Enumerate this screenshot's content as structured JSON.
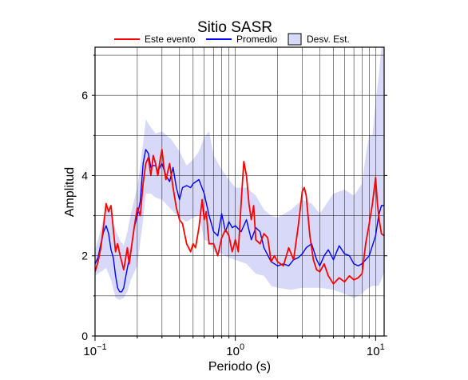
{
  "chart_data": {
    "type": "line",
    "title": "Sitio SASR",
    "xlabel": "Periodo (s)",
    "ylabel": "Amplitud",
    "x_scale": "log",
    "xlim": [
      0.1,
      11.5
    ],
    "ylim": [
      0,
      7.2
    ],
    "x_ticks": [
      {
        "value": 0.1,
        "base": "10",
        "exp": "−1"
      },
      {
        "value": 1,
        "base": "10",
        "exp": "0"
      },
      {
        "value": 10,
        "base": "10",
        "exp": "1"
      }
    ],
    "y_ticks": [
      "0",
      "2",
      "4",
      "6"
    ],
    "grid": true,
    "legend": {
      "position": "top",
      "entries": [
        {
          "label": "Este evento",
          "color": "#ff0000",
          "kind": "line"
        },
        {
          "label": "Promedio",
          "color": "#0000ff",
          "kind": "line"
        },
        {
          "label": "Desv. Est.",
          "color": "#d8d8f8",
          "kind": "area"
        }
      ]
    },
    "series": [
      {
        "name": "Este evento",
        "color": "#ff0000",
        "x": [
          0.1,
          0.105,
          0.11,
          0.115,
          0.12,
          0.125,
          0.13,
          0.135,
          0.14,
          0.145,
          0.15,
          0.16,
          0.17,
          0.175,
          0.18,
          0.19,
          0.2,
          0.21,
          0.22,
          0.23,
          0.24,
          0.25,
          0.26,
          0.27,
          0.28,
          0.29,
          0.3,
          0.31,
          0.32,
          0.33,
          0.34,
          0.36,
          0.38,
          0.4,
          0.42,
          0.45,
          0.48,
          0.5,
          0.52,
          0.55,
          0.58,
          0.6,
          0.62,
          0.65,
          0.7,
          0.75,
          0.8,
          0.85,
          0.9,
          0.95,
          1.0,
          1.05,
          1.1,
          1.15,
          1.2,
          1.25,
          1.3,
          1.35,
          1.4,
          1.5,
          1.6,
          1.7,
          1.8,
          1.9,
          2.0,
          2.2,
          2.4,
          2.6,
          2.8,
          3.0,
          3.1,
          3.2,
          3.4,
          3.6,
          3.8,
          4.0,
          4.3,
          4.6,
          5.0,
          5.5,
          6.0,
          6.5,
          7.0,
          7.5,
          8.0,
          8.5,
          9.0,
          9.5,
          10.0,
          10.3,
          10.6,
          11.0,
          11.5
        ],
        "y": [
          1.6,
          1.85,
          2.2,
          2.75,
          3.3,
          3.1,
          3.25,
          2.65,
          2.1,
          2.3,
          2.05,
          1.65,
          2.2,
          1.8,
          2.1,
          2.7,
          3.2,
          3.0,
          3.8,
          4.3,
          4.45,
          4.0,
          4.5,
          4.3,
          4.0,
          4.35,
          4.65,
          4.2,
          3.9,
          4.1,
          4.3,
          3.7,
          3.2,
          2.9,
          2.8,
          2.3,
          2.1,
          2.3,
          2.2,
          2.7,
          3.4,
          2.9,
          3.1,
          2.3,
          2.3,
          2.0,
          2.45,
          2.65,
          2.5,
          2.1,
          2.4,
          2.1,
          3.3,
          4.35,
          4.0,
          3.3,
          2.9,
          3.25,
          2.4,
          2.3,
          2.55,
          2.45,
          1.85,
          2.0,
          1.85,
          1.75,
          2.2,
          1.9,
          2.7,
          3.6,
          3.7,
          3.5,
          2.5,
          1.9,
          1.65,
          1.6,
          1.8,
          1.5,
          1.3,
          1.45,
          1.35,
          1.5,
          1.4,
          1.45,
          1.55,
          2.3,
          2.8,
          3.3,
          3.95,
          3.3,
          2.9,
          2.55,
          2.5
        ]
      },
      {
        "name": "Promedio",
        "color": "#0000ff",
        "x": [
          0.1,
          0.105,
          0.11,
          0.115,
          0.12,
          0.125,
          0.13,
          0.135,
          0.14,
          0.145,
          0.15,
          0.155,
          0.16,
          0.17,
          0.18,
          0.19,
          0.2,
          0.21,
          0.22,
          0.23,
          0.24,
          0.25,
          0.26,
          0.27,
          0.28,
          0.29,
          0.3,
          0.32,
          0.34,
          0.36,
          0.38,
          0.4,
          0.42,
          0.45,
          0.48,
          0.5,
          0.55,
          0.6,
          0.65,
          0.7,
          0.75,
          0.8,
          0.85,
          0.9,
          0.95,
          1.0,
          1.1,
          1.2,
          1.3,
          1.4,
          1.5,
          1.6,
          1.8,
          2.0,
          2.2,
          2.4,
          2.6,
          2.8,
          3.0,
          3.2,
          3.5,
          3.8,
          4.0,
          4.3,
          4.6,
          5.0,
          5.5,
          6.0,
          6.5,
          7.0,
          7.5,
          8.0,
          9.0,
          10.0,
          10.5,
          11.0,
          11.5
        ],
        "y": [
          1.8,
          1.95,
          2.3,
          2.6,
          2.75,
          2.55,
          2.15,
          1.95,
          1.5,
          1.2,
          1.1,
          1.1,
          1.2,
          1.7,
          2.1,
          2.7,
          3.0,
          3.35,
          4.3,
          4.65,
          4.55,
          4.2,
          4.25,
          4.25,
          4.1,
          4.2,
          4.3,
          4.0,
          3.85,
          4.2,
          3.7,
          3.4,
          3.7,
          3.75,
          3.7,
          3.8,
          3.9,
          3.55,
          3.0,
          2.6,
          2.5,
          3.05,
          2.6,
          2.85,
          2.7,
          2.75,
          2.6,
          2.9,
          2.4,
          2.7,
          2.6,
          2.2,
          1.85,
          1.75,
          1.8,
          1.75,
          1.9,
          1.95,
          2.05,
          2.2,
          2.3,
          1.9,
          1.75,
          2.0,
          2.15,
          1.9,
          2.25,
          2.05,
          2.0,
          1.8,
          1.75,
          1.8,
          2.0,
          2.5,
          3.0,
          3.25,
          3.25
        ]
      }
    ],
    "std_band": {
      "name": "Desv. Est.",
      "color": "#d8d8f8",
      "x": [
        0.1,
        0.11,
        0.12,
        0.13,
        0.14,
        0.15,
        0.16,
        0.17,
        0.18,
        0.2,
        0.22,
        0.23,
        0.25,
        0.27,
        0.3,
        0.35,
        0.4,
        0.45,
        0.5,
        0.55,
        0.6,
        0.65,
        0.7,
        0.8,
        0.9,
        1.0,
        1.2,
        1.4,
        1.6,
        1.8,
        2.0,
        2.5,
        3.0,
        3.5,
        4.0,
        5.0,
        6.0,
        7.0,
        8.0,
        8.5,
        9.0,
        9.5,
        10.0,
        10.5,
        11.0,
        11.5
      ],
      "upper": [
        2.15,
        2.65,
        3.25,
        3.1,
        2.65,
        2.4,
        2.25,
        2.6,
        3.05,
        3.7,
        4.8,
        5.4,
        5.2,
        5.05,
        5.1,
        4.9,
        4.6,
        4.25,
        4.4,
        4.6,
        4.95,
        5.1,
        4.5,
        4.15,
        3.9,
        3.7,
        3.7,
        3.5,
        3.15,
        3.0,
        2.95,
        3.15,
        3.4,
        3.3,
        3.05,
        3.55,
        3.65,
        3.5,
        3.8,
        4.5,
        5.0,
        5.0,
        5.85,
        6.45,
        7.2,
        7.2
      ],
      "lower": [
        1.5,
        1.6,
        1.7,
        1.4,
        0.95,
        0.9,
        0.95,
        1.1,
        1.4,
        1.75,
        2.9,
        3.55,
        3.55,
        3.45,
        3.4,
        3.15,
        2.95,
        2.85,
        2.95,
        3.0,
        2.4,
        2.35,
        2.1,
        2.05,
        1.95,
        1.9,
        1.8,
        1.55,
        1.5,
        1.25,
        1.2,
        1.15,
        1.2,
        1.2,
        1.2,
        1.15,
        1.05,
        0.95,
        1.05,
        1.15,
        1.2,
        1.25,
        1.25,
        1.25,
        1.4,
        1.6
      ]
    }
  }
}
